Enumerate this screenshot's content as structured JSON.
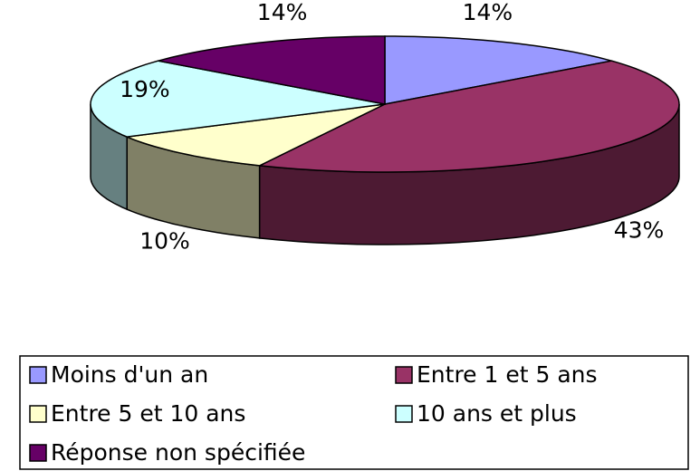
{
  "chart_data": {
    "type": "pie",
    "categories": [
      "Moins d'un an",
      "Entre 1 et 5 ans",
      "Entre 5 et 10 ans",
      "10 ans et plus",
      "Réponse non spécifiée"
    ],
    "values": [
      14,
      43,
      10,
      19,
      14
    ],
    "value_labels": [
      "14%",
      "43%",
      "10%",
      "19%",
      "14%"
    ],
    "colors": [
      "#9999ff",
      "#993366",
      "#ffffcc",
      "#ccffff",
      "#660066"
    ],
    "legend": "bottom"
  }
}
